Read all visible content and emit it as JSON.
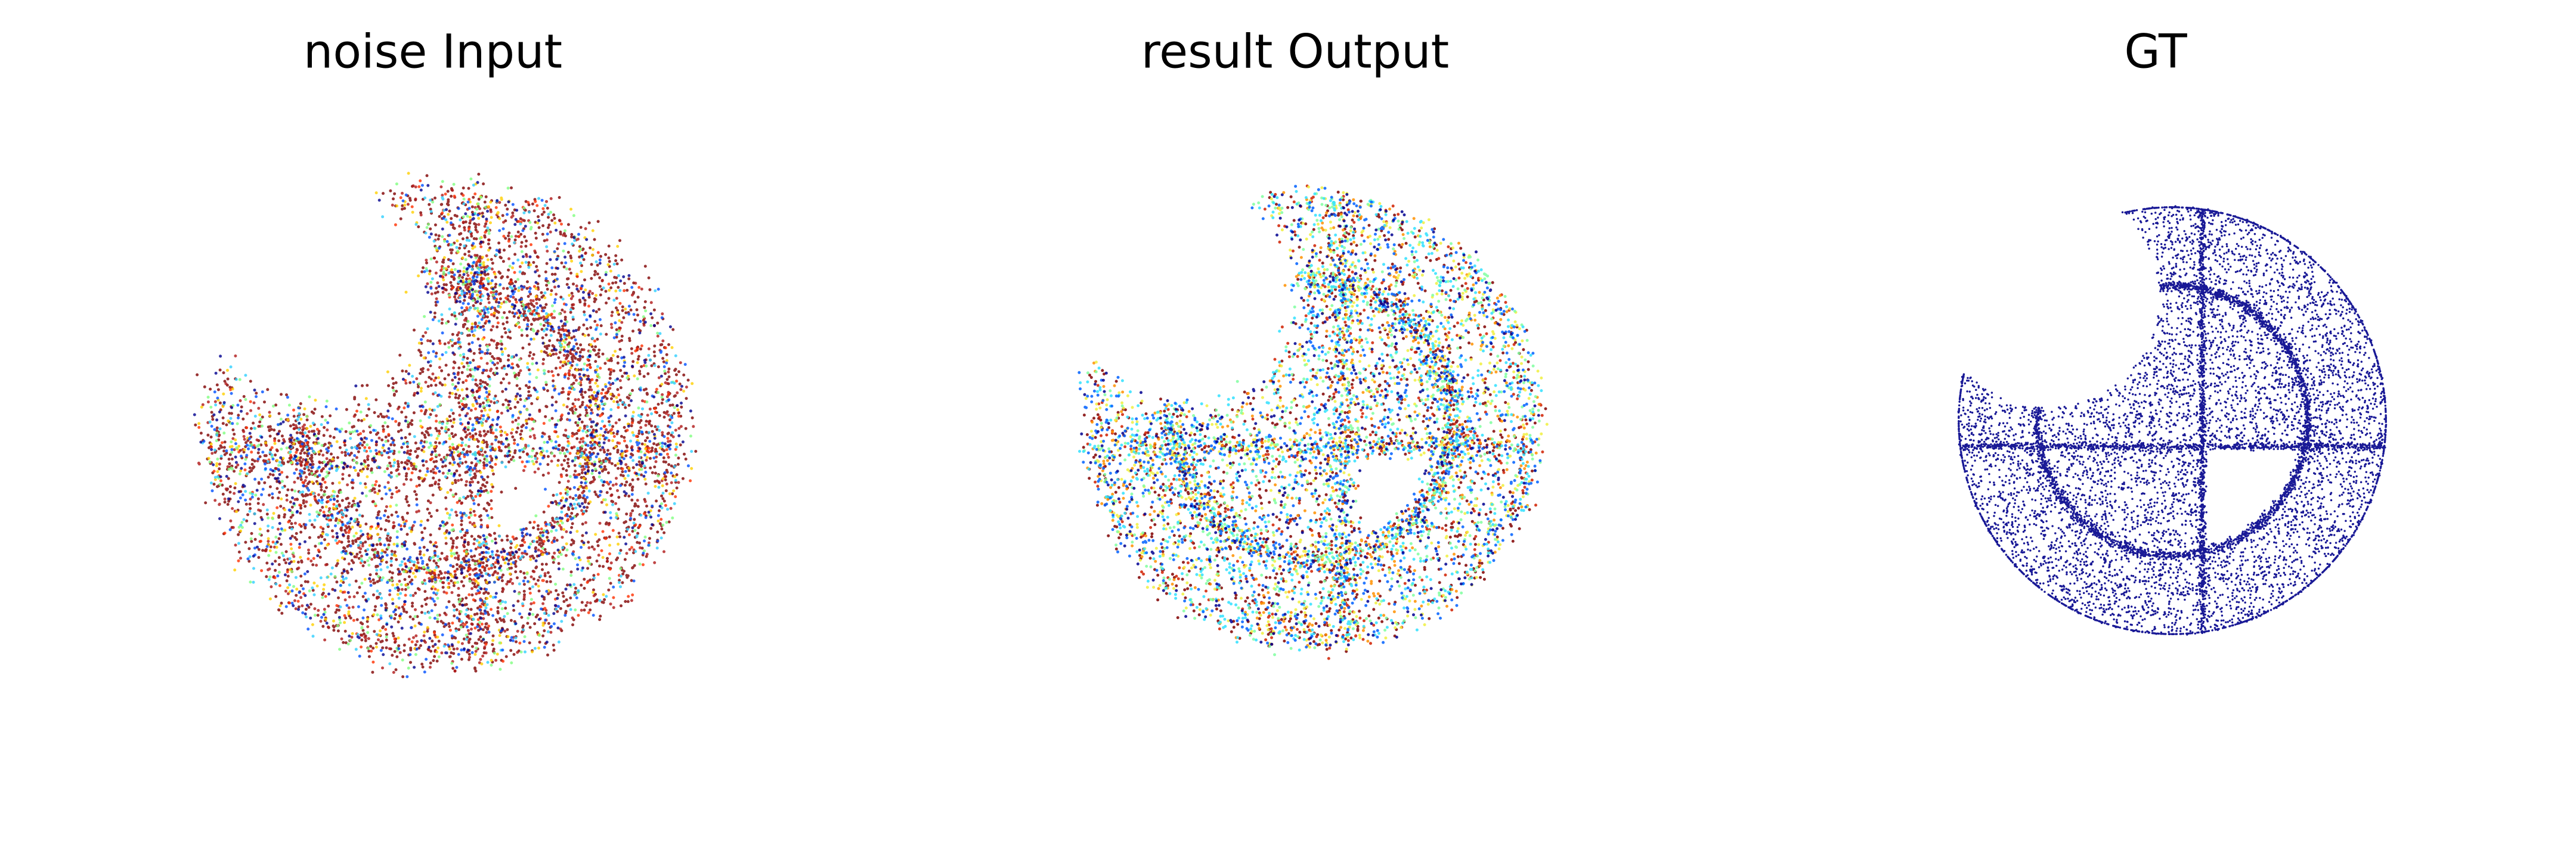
{
  "panels": [
    {
      "title": "noise Input"
    },
    {
      "title": "result Output"
    },
    {
      "title": "GT"
    }
  ]
}
